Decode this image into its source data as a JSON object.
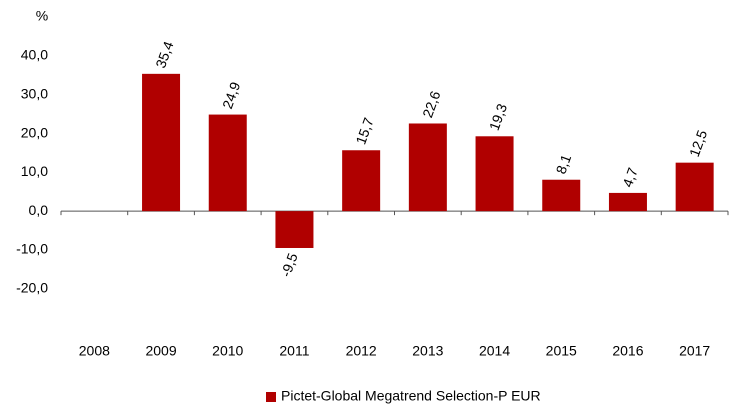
{
  "chart_data": {
    "type": "bar",
    "y_axis_label": "%",
    "categories": [
      "2008",
      "2009",
      "2010",
      "2011",
      "2012",
      "2013",
      "2014",
      "2015",
      "2016",
      "2017"
    ],
    "series": [
      {
        "name": "Pictet-Global Megatrend Selection-P EUR",
        "color": "#b00000",
        "values": [
          null,
          35.4,
          24.9,
          -9.5,
          15.7,
          22.6,
          19.3,
          8.1,
          4.7,
          12.5
        ],
        "value_labels": [
          null,
          "35,4",
          "24,9",
          "-9,5",
          "15,7",
          "22,6",
          "19,3",
          "8,1",
          "4,7",
          "12,5"
        ]
      }
    ],
    "ylim": [
      -30,
      40
    ],
    "yticks": [
      {
        "value": 40,
        "label": "40,0"
      },
      {
        "value": 30,
        "label": "30,0"
      },
      {
        "value": 20,
        "label": "20,0"
      },
      {
        "value": 10,
        "label": "10,0"
      },
      {
        "value": 0,
        "label": "0,0"
      },
      {
        "value": -10,
        "label": "-10,0"
      },
      {
        "value": -20,
        "label": "-20,0"
      }
    ],
    "grid": false,
    "legend": "bottom"
  }
}
